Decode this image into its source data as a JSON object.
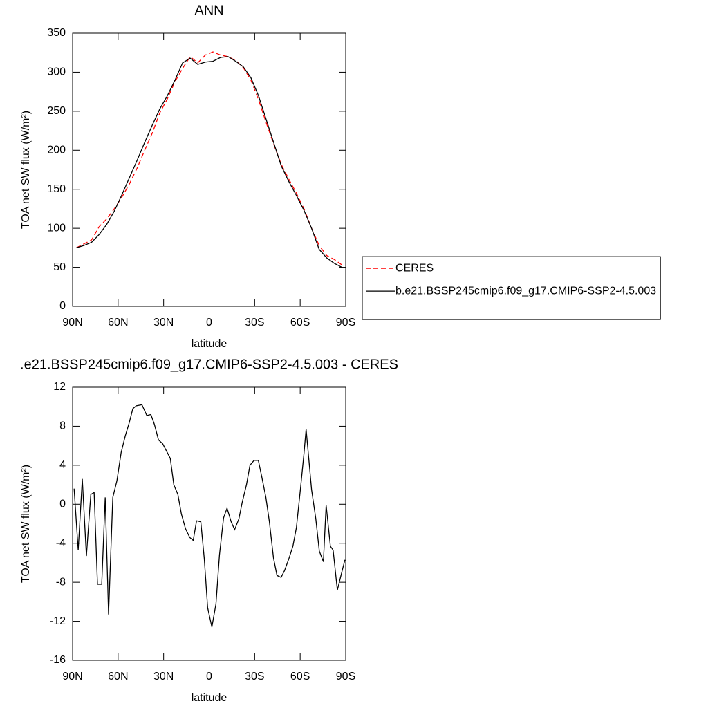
{
  "chart_data": [
    {
      "type": "line",
      "title": "ANN",
      "xlabel": "latitude",
      "ylabel": "TOA net SW flux (W/m²)",
      "x": [
        87.5,
        82.5,
        77.5,
        72.5,
        67.5,
        62.5,
        57.5,
        52.5,
        47.5,
        42.5,
        37.5,
        32.5,
        27.5,
        22.5,
        17.5,
        12.5,
        7.5,
        2.5,
        -2.5,
        -7.5,
        -12.5,
        -17.5,
        -22.5,
        -27.5,
        -32.5,
        -37.5,
        -42.5,
        -47.5,
        -52.5,
        -57.5,
        -62.5,
        -67.5,
        -72.5,
        -77.5,
        -82.5,
        -87.5
      ],
      "series": [
        {
          "name": "CERES",
          "color": "#ff0000",
          "line_style": "dashed",
          "values": [
            75,
            80,
            85,
            102,
            112,
            125,
            140,
            157,
            177,
            200,
            222,
            248,
            266,
            288,
            305,
            320,
            312,
            322,
            326,
            322,
            320,
            315,
            306,
            290,
            265,
            236,
            208,
            182,
            163,
            145,
            125,
            100,
            78,
            65,
            60,
            53
          ]
        },
        {
          "name": "b.e21.BSSP245cmip6.f09_g17.CMIP6-SSP2-4.5.003",
          "color": "#000000",
          "line_style": "solid",
          "values": [
            75,
            78,
            82,
            92,
            105,
            122,
            143,
            165,
            187,
            210,
            232,
            253,
            270,
            290,
            312,
            318,
            310,
            313,
            314,
            319,
            320,
            314,
            307,
            293,
            270,
            240,
            210,
            180,
            160,
            142,
            123,
            100,
            73,
            62,
            55,
            50
          ]
        }
      ],
      "xlim": [
        90,
        -90
      ],
      "xticks": [
        {
          "value": 90,
          "label": "90N"
        },
        {
          "value": 60,
          "label": "60N"
        },
        {
          "value": 30,
          "label": "30N"
        },
        0,
        {
          "value": -30,
          "label": "30S"
        },
        {
          "value": -60,
          "label": "60S"
        },
        {
          "value": -90,
          "label": "90S"
        }
      ],
      "ylim": [
        0,
        350
      ],
      "yticks": [
        0,
        50,
        100,
        150,
        200,
        250,
        300,
        350
      ],
      "legend": "right"
    },
    {
      "type": "line",
      "title": ".e21.BSSP245cmip6.f09_g17.CMIP6-SSP2-4.5.003 - CERES",
      "xlabel": "latitude",
      "ylabel": "TOA net SW flux (W/m²)",
      "x": [
        89,
        86.3,
        83.6,
        80.9,
        78,
        75.8,
        73.6,
        70.8,
        68.5,
        66.3,
        63.5,
        60.8,
        58,
        55.3,
        52.6,
        50.3,
        48,
        44.3,
        41.1,
        38.4,
        36.1,
        33.4,
        30.6,
        25.6,
        23.3,
        20.6,
        18.3,
        15.6,
        12.8,
        10.5,
        8.3,
        5.5,
        3.2,
        1,
        -1.8,
        -4.5,
        -6.8,
        -9.5,
        -11.8,
        -14.5,
        -16.8,
        -19.6,
        -21.8,
        -24.6,
        -26.9,
        -29.6,
        -32.4,
        -34.7,
        -37.4,
        -39.7,
        -42.4,
        -44.7,
        -47.4,
        -49.7,
        -52.5,
        -55.2,
        -57.5,
        -60.2,
        -62.5,
        -63.9,
        -67.5,
        -70.3,
        -72.6,
        -75.3,
        -77.1,
        -79.9,
        -81.7,
        -84.5,
        -87.2,
        -89.5
      ],
      "values": [
        1.6,
        -4.7,
        2.6,
        -5.3,
        1.0,
        1.2,
        -8.2,
        -8.2,
        0.7,
        -11.3,
        0.7,
        2.4,
        5.3,
        7.0,
        8.4,
        9.8,
        10.1,
        10.2,
        9.1,
        9.2,
        8.2,
        6.6,
        6.2,
        4.7,
        2.0,
        1.0,
        -1.0,
        -2.5,
        -3.4,
        -3.7,
        -1.7,
        -1.8,
        -5.6,
        -10.6,
        -12.6,
        -10.2,
        -5.2,
        -1.4,
        -0.4,
        -1.8,
        -2.6,
        -1.5,
        0.2,
        2.0,
        4.0,
        4.5,
        4.5,
        2.8,
        0.7,
        -1.8,
        -5.5,
        -7.3,
        -7.5,
        -6.8,
        -5.6,
        -4.3,
        -2.4,
        1.6,
        5.2,
        7.7,
        1.5,
        -1.5,
        -4.8,
        -5.9,
        -0.1,
        -4.3,
        -4.7,
        -8.8,
        -7.1,
        -5.7
      ],
      "color": "#000000",
      "xlim": [
        90,
        -90
      ],
      "xticks": [
        {
          "value": 90,
          "label": "90N"
        },
        {
          "value": 60,
          "label": "60N"
        },
        {
          "value": 30,
          "label": "30N"
        },
        0,
        {
          "value": -30,
          "label": "30S"
        },
        {
          "value": -60,
          "label": "60S"
        },
        {
          "value": -90,
          "label": "90S"
        }
      ],
      "ylim": [
        -16,
        12
      ],
      "yticks": [
        -16,
        -12,
        -8,
        -4,
        0,
        4,
        8,
        12
      ]
    }
  ]
}
